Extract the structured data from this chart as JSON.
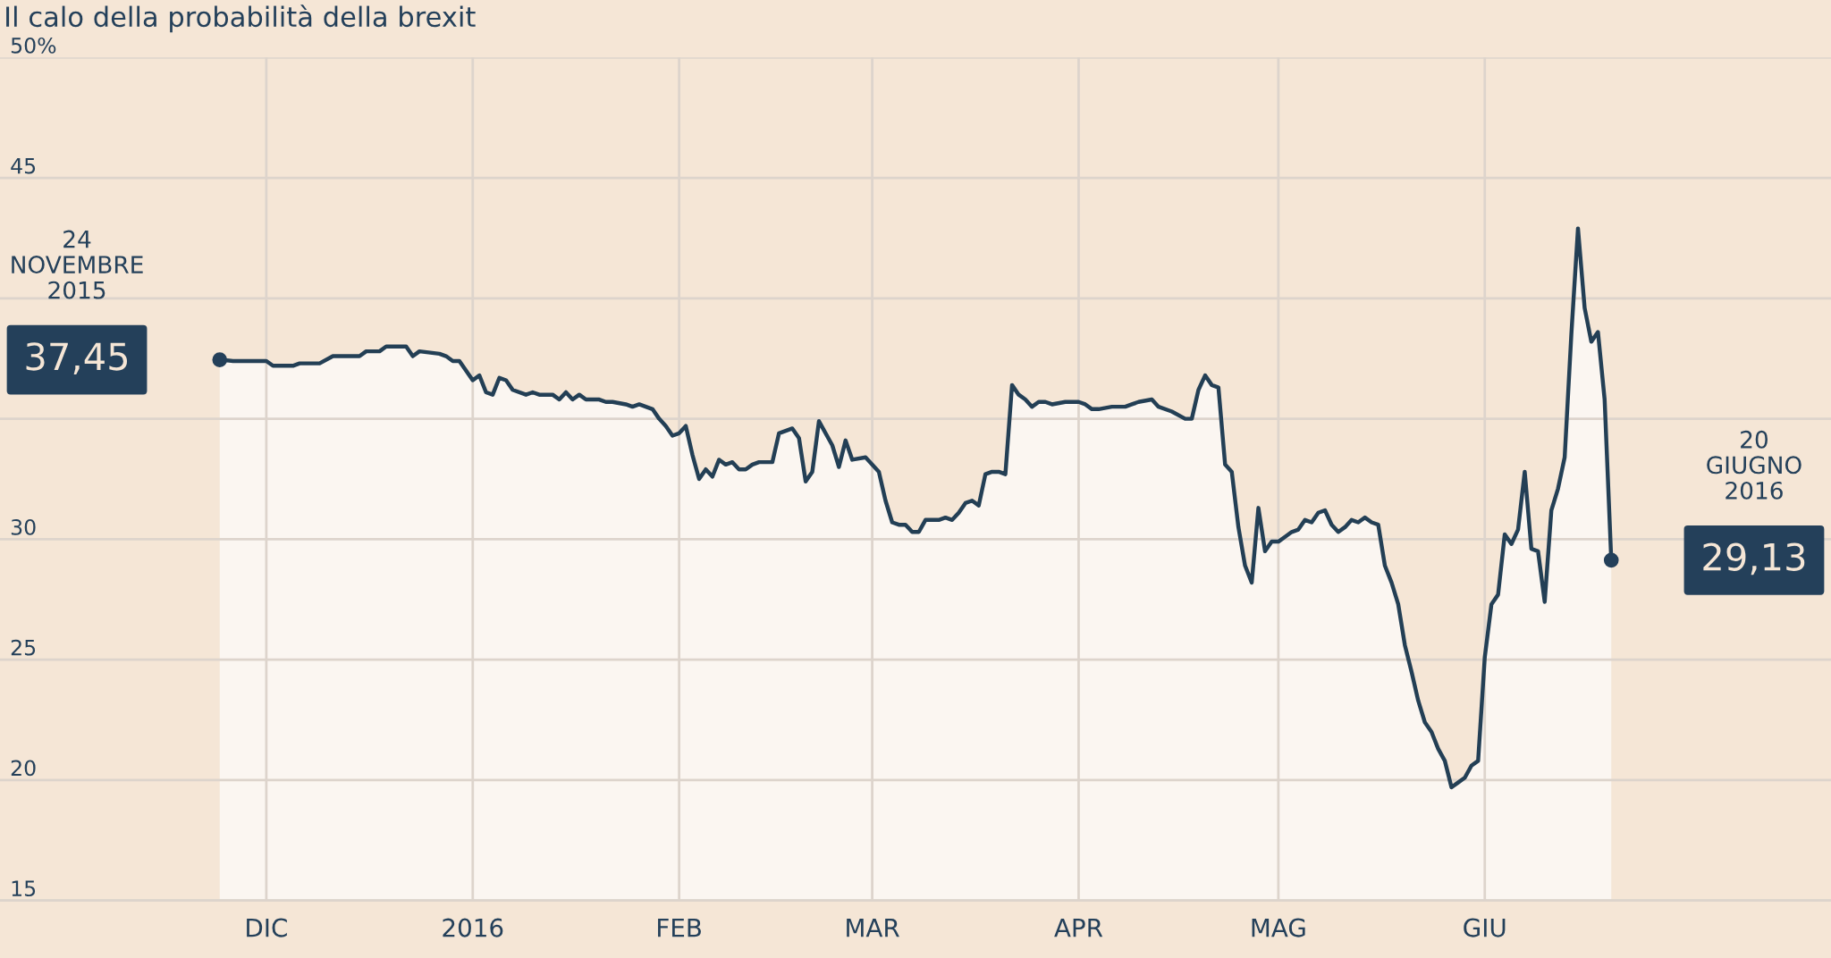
{
  "chart_data": {
    "type": "area",
    "title": "Il calo della probabilità della brexit",
    "xlim": [
      "2015-10-22",
      "2016-07-23"
    ],
    "xticks": [
      {
        "value": "2015-12-01",
        "label": "DIC"
      },
      {
        "value": "2016-01-01",
        "label": "2016"
      },
      {
        "value": "2016-02-01",
        "label": "FEB"
      },
      {
        "value": "2016-03-01",
        "label": "MAR"
      },
      {
        "value": "2016-04-01",
        "label": "APR"
      },
      {
        "value": "2016-05-01",
        "label": "MAG"
      },
      {
        "value": "2016-06-01",
        "label": "GIU"
      }
    ],
    "ylim": [
      15,
      50
    ],
    "yticks": [
      15,
      20,
      25,
      30,
      {
        "value": 35,
        "label": null
      },
      {
        "value": 40,
        "label": null
      },
      45,
      {
        "value": 50,
        "label": "50%"
      }
    ],
    "grid": true,
    "series": [
      {
        "color": "#233f55",
        "x": [
          "2015-11-24",
          "2015-11-26",
          "2015-12-01",
          "2015-12-02",
          "2015-12-05",
          "2015-12-06",
          "2015-12-09",
          "2015-12-11",
          "2015-12-15",
          "2015-12-16",
          "2015-12-18",
          "2015-12-19",
          "2015-12-21",
          "2015-12-22",
          "2015-12-23",
          "2015-12-24",
          "2015-12-27",
          "2015-12-28",
          "2015-12-29",
          "2015-12-30",
          "2016-01-01",
          "2016-01-02",
          "2016-01-03",
          "2016-01-04",
          "2016-01-05",
          "2016-01-06",
          "2016-01-07",
          "2016-01-09",
          "2016-01-10",
          "2016-01-11",
          "2016-01-13",
          "2016-01-14",
          "2016-01-15",
          "2016-01-16",
          "2016-01-17",
          "2016-01-18",
          "2016-01-20",
          "2016-01-21",
          "2016-01-22",
          "2016-01-24",
          "2016-01-25",
          "2016-01-26",
          "2016-01-28",
          "2016-01-29",
          "2016-01-30",
          "2016-01-31",
          "2016-02-01",
          "2016-02-02",
          "2016-02-03",
          "2016-02-04",
          "2016-02-05",
          "2016-02-06",
          "2016-02-07",
          "2016-02-08",
          "2016-02-09",
          "2016-02-10",
          "2016-02-11",
          "2016-02-12",
          "2016-02-13",
          "2016-02-14",
          "2016-02-15",
          "2016-02-16",
          "2016-02-18",
          "2016-02-19",
          "2016-02-20",
          "2016-02-21",
          "2016-02-22",
          "2016-02-24",
          "2016-02-25",
          "2016-02-26",
          "2016-02-27",
          "2016-02-29",
          "2016-03-02",
          "2016-03-03",
          "2016-03-04",
          "2016-03-05",
          "2016-03-06",
          "2016-03-07",
          "2016-03-08",
          "2016-03-09",
          "2016-03-11",
          "2016-03-12",
          "2016-03-13",
          "2016-03-14",
          "2016-03-15",
          "2016-03-16",
          "2016-03-17",
          "2016-03-18",
          "2016-03-19",
          "2016-03-20",
          "2016-03-21",
          "2016-03-22",
          "2016-03-23",
          "2016-03-24",
          "2016-03-25",
          "2016-03-26",
          "2016-03-27",
          "2016-03-28",
          "2016-03-30",
          "2016-04-01",
          "2016-04-02",
          "2016-04-03",
          "2016-04-04",
          "2016-04-06",
          "2016-04-08",
          "2016-04-09",
          "2016-04-10",
          "2016-04-12",
          "2016-04-13",
          "2016-04-15",
          "2016-04-17",
          "2016-04-18",
          "2016-04-19",
          "2016-04-20",
          "2016-04-21",
          "2016-04-22",
          "2016-04-23",
          "2016-04-24",
          "2016-04-25",
          "2016-04-26",
          "2016-04-27",
          "2016-04-28",
          "2016-04-29",
          "2016-04-30",
          "2016-05-01",
          "2016-05-02",
          "2016-05-03",
          "2016-05-04",
          "2016-05-05",
          "2016-05-06",
          "2016-05-07",
          "2016-05-08",
          "2016-05-09",
          "2016-05-10",
          "2016-05-11",
          "2016-05-12",
          "2016-05-13",
          "2016-05-14",
          "2016-05-15",
          "2016-05-16",
          "2016-05-17",
          "2016-05-18",
          "2016-05-19",
          "2016-05-20",
          "2016-05-21",
          "2016-05-22",
          "2016-05-23",
          "2016-05-24",
          "2016-05-25",
          "2016-05-26",
          "2016-05-27",
          "2016-05-28",
          "2016-05-29",
          "2016-05-30",
          "2016-05-31",
          "2016-06-01",
          "2016-06-02",
          "2016-06-03",
          "2016-06-04",
          "2016-06-05",
          "2016-06-06",
          "2016-06-07",
          "2016-06-08",
          "2016-06-09",
          "2016-06-10",
          "2016-06-11",
          "2016-06-12",
          "2016-06-13",
          "2016-06-14",
          "2016-06-15",
          "2016-06-16",
          "2016-06-17",
          "2016-06-18",
          "2016-06-19",
          "2016-06-20"
        ],
        "values": [
          37.45,
          37.4,
          37.4,
          37.2,
          37.2,
          37.3,
          37.3,
          37.6,
          37.6,
          37.8,
          37.8,
          38.0,
          38.0,
          38.0,
          37.6,
          37.8,
          37.7,
          37.6,
          37.4,
          37.4,
          36.6,
          36.8,
          36.1,
          36.0,
          36.7,
          36.6,
          36.2,
          36.0,
          36.1,
          36.0,
          36.0,
          35.8,
          36.1,
          35.8,
          36.0,
          35.8,
          35.8,
          35.7,
          35.7,
          35.6,
          35.5,
          35.6,
          35.4,
          35.0,
          34.7,
          34.3,
          34.4,
          34.7,
          33.5,
          32.5,
          32.9,
          32.6,
          33.3,
          33.1,
          33.2,
          32.9,
          32.9,
          33.1,
          33.2,
          33.2,
          33.2,
          34.4,
          34.6,
          34.2,
          32.4,
          32.8,
          34.9,
          33.9,
          33.0,
          34.1,
          33.3,
          33.4,
          32.8,
          31.6,
          30.7,
          30.6,
          30.6,
          30.3,
          30.3,
          30.8,
          30.8,
          30.9,
          30.8,
          31.1,
          31.5,
          31.6,
          31.4,
          32.7,
          32.8,
          32.8,
          32.7,
          36.4,
          36.0,
          35.8,
          35.5,
          35.7,
          35.7,
          35.6,
          35.7,
          35.7,
          35.6,
          35.4,
          35.4,
          35.5,
          35.5,
          35.6,
          35.7,
          35.8,
          35.5,
          35.3,
          35.0,
          35.0,
          36.2,
          36.8,
          36.4,
          36.3,
          33.1,
          32.8,
          30.5,
          28.9,
          28.2,
          31.3,
          29.5,
          29.9,
          29.9,
          30.1,
          30.3,
          30.4,
          30.8,
          30.7,
          31.1,
          31.2,
          30.6,
          30.3,
          30.5,
          30.8,
          30.7,
          30.9,
          30.7,
          30.6,
          28.9,
          28.2,
          27.3,
          25.6,
          24.5,
          23.3,
          22.4,
          22.0,
          21.3,
          20.8,
          19.7,
          19.9,
          20.1,
          20.6,
          20.8,
          25.1,
          27.3,
          27.7,
          30.2,
          29.8,
          30.4,
          32.8,
          29.6,
          29.5,
          27.4,
          31.2,
          32.1,
          33.4,
          38.5,
          42.9,
          39.6,
          38.2,
          38.6,
          35.8,
          29.13
        ]
      }
    ],
    "annotations": [
      "24\nNOVEMBRE\n2015",
      {
        "text": "37,45",
        "x": "2015-11-24",
        "y": 37.45
      },
      "20\nGIUGNO\n2016",
      {
        "text": "29,13",
        "x": "2016-06-20",
        "y": 29.13
      }
    ]
  }
}
